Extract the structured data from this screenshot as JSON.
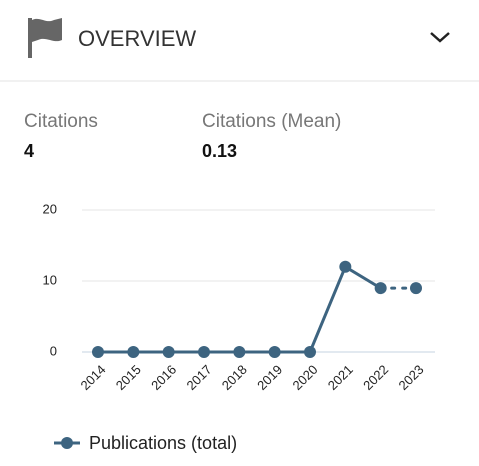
{
  "header": {
    "title": "OVERVIEW"
  },
  "stats": [
    {
      "label": "Citations",
      "value": "4"
    },
    {
      "label": "Citations (Mean)",
      "value": "0.13"
    }
  ],
  "chart_data": {
    "type": "line",
    "categories": [
      "2014",
      "2015",
      "2016",
      "2017",
      "2018",
      "2019",
      "2020",
      "2021",
      "2022",
      "2023"
    ],
    "series": [
      {
        "name": "Publications (total)",
        "color": "#3d6480",
        "values": [
          0,
          0,
          0,
          0,
          0,
          0,
          0,
          12,
          9,
          9
        ]
      }
    ],
    "ylim": [
      0,
      20
    ],
    "yticks": [
      0,
      10,
      20
    ],
    "grid": true,
    "dashed_last_segment": true,
    "legend": "bottom"
  }
}
